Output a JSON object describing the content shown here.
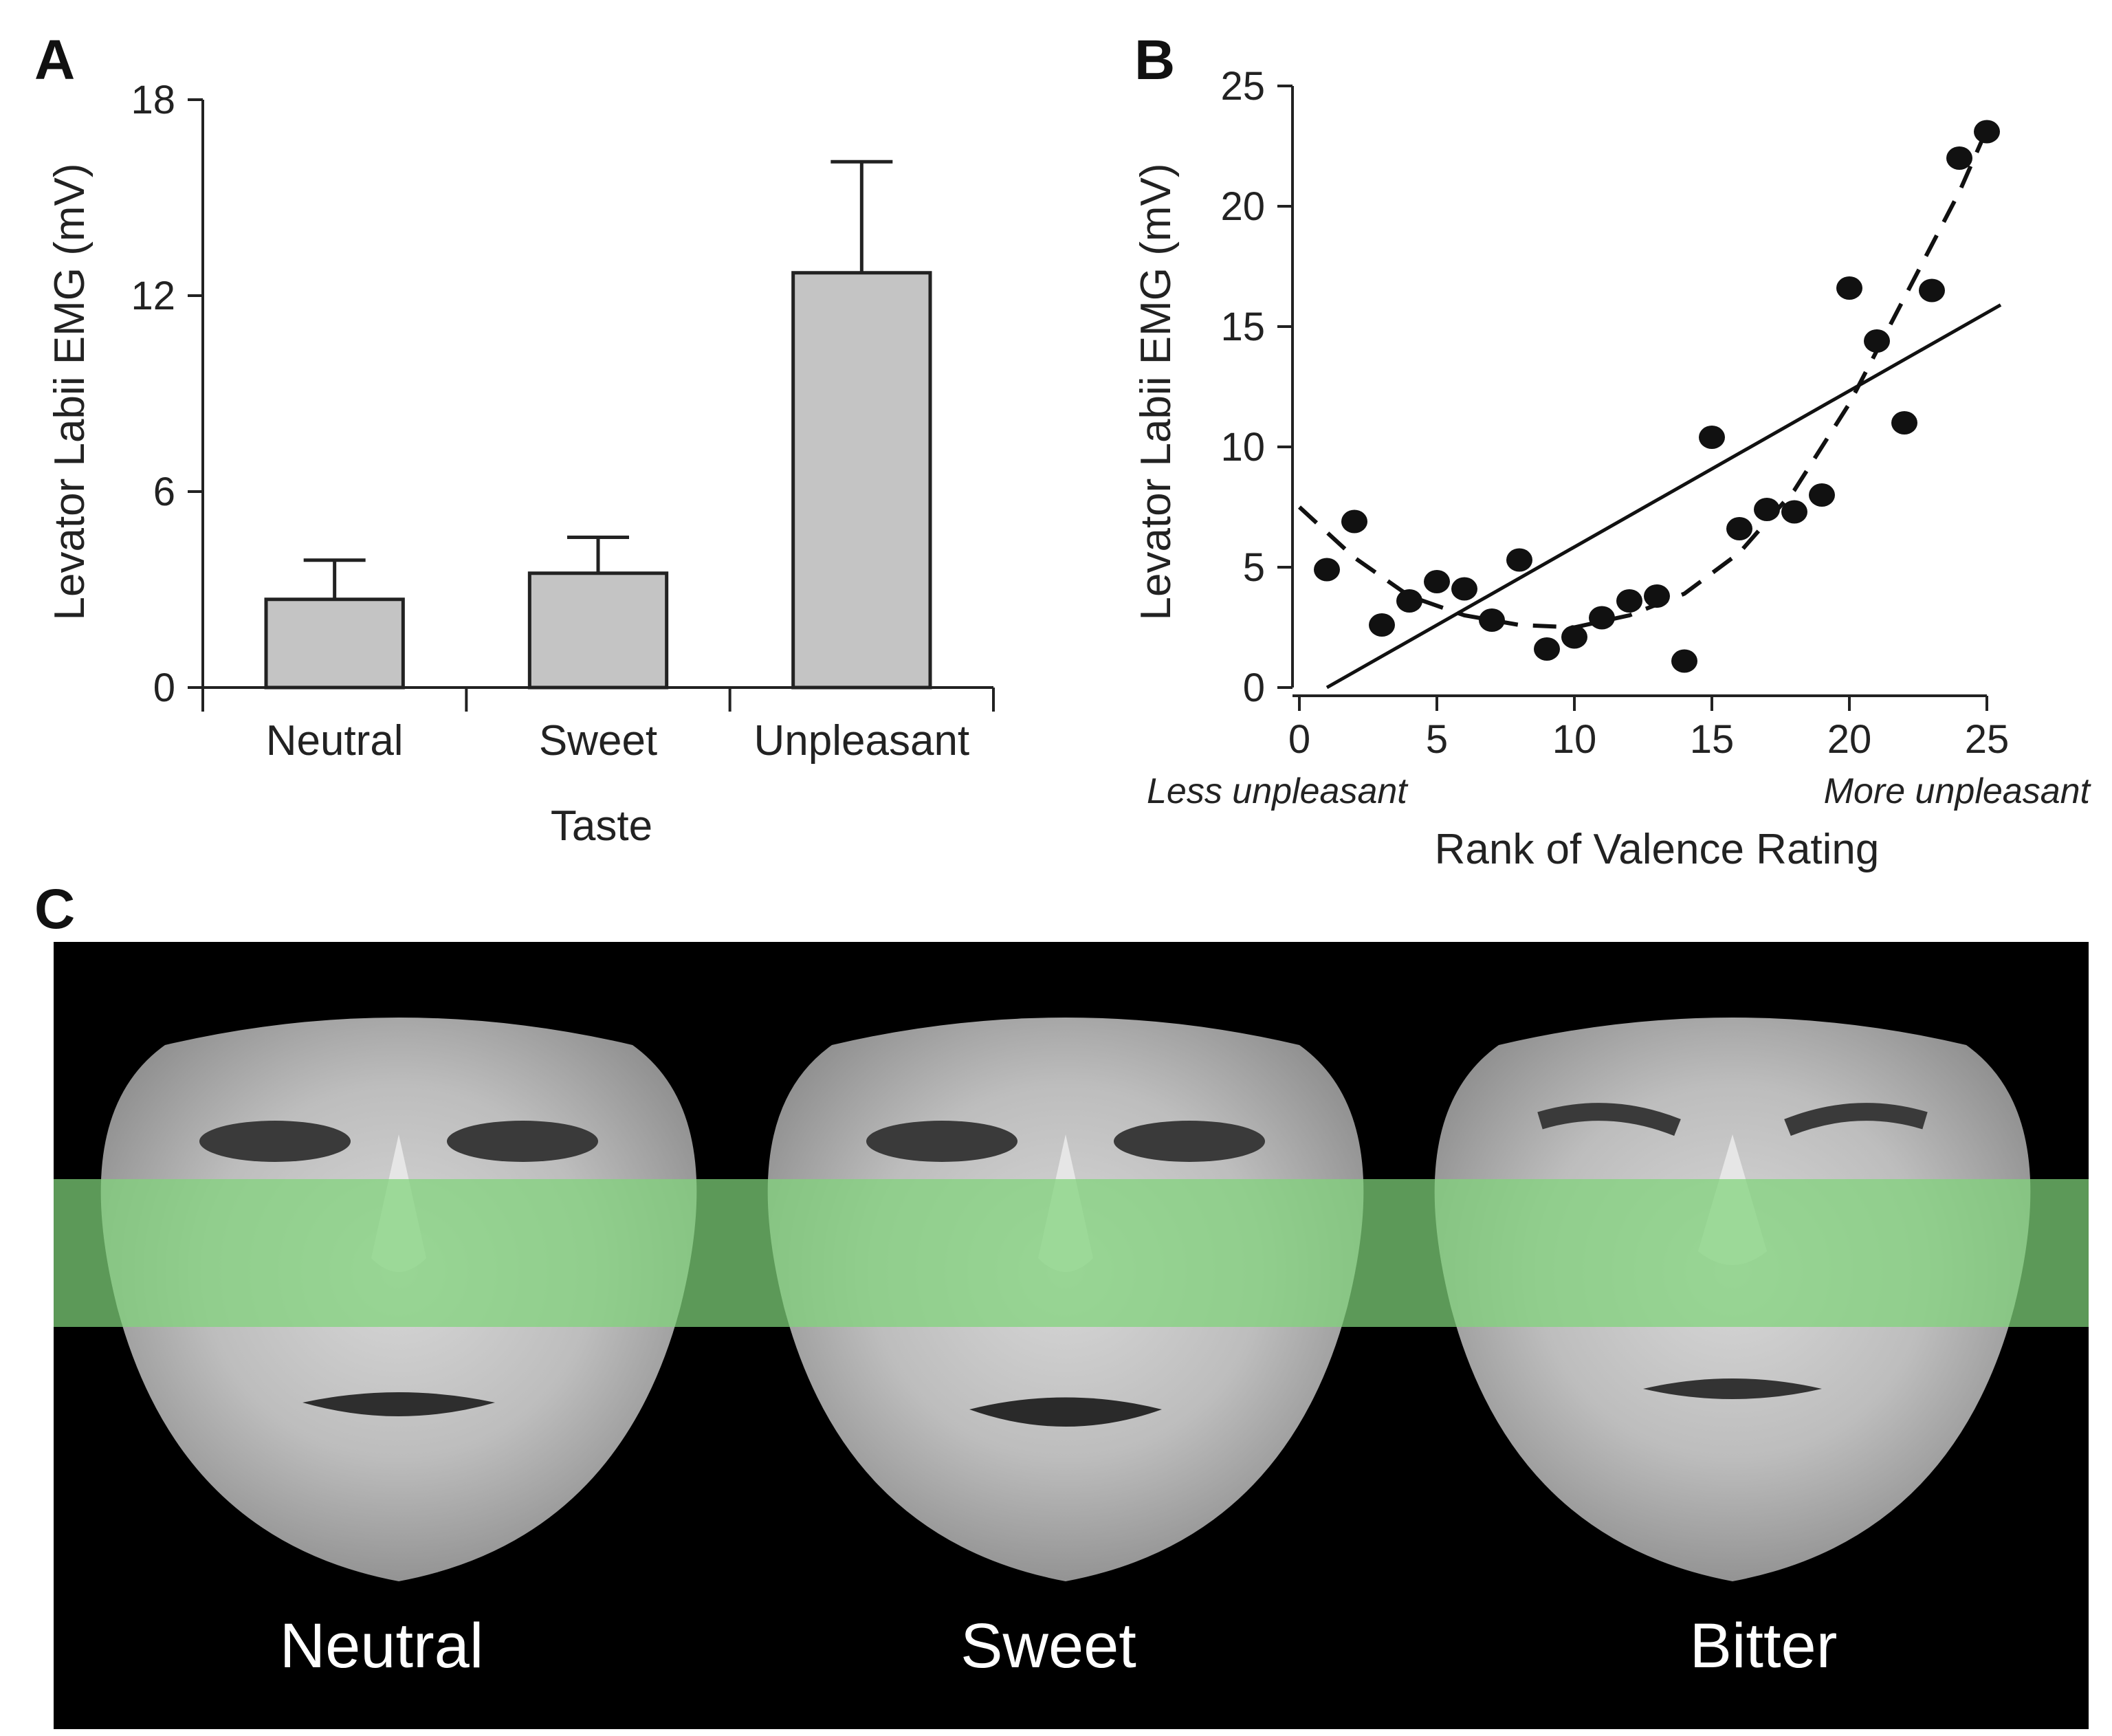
{
  "panels": {
    "a_letter": "A",
    "b_letter": "B",
    "c_letter": "C"
  },
  "chart_data": [
    {
      "type": "bar",
      "panel": "A",
      "categories": [
        "Neutral",
        "Sweet",
        "Unpleasant"
      ],
      "values": [
        2.7,
        3.5,
        12.7
      ],
      "errors": [
        1.2,
        1.1,
        3.4
      ],
      "xlabel": "Taste",
      "ylabel": "Levator Labii EMG (mV)",
      "ylim": [
        0,
        18
      ],
      "yticks": [
        "0",
        "6",
        "12",
        "18"
      ],
      "bar_color": "#c4c4c4",
      "grid": false
    },
    {
      "type": "scatter",
      "panel": "B",
      "xlabel": "Rank of Valence Rating",
      "ylabel": "Levator Labii EMG (mV)",
      "xlim": [
        0,
        25
      ],
      "ylim": [
        0,
        25
      ],
      "xticks": [
        "0",
        "5",
        "10",
        "15",
        "20",
        "25"
      ],
      "yticks": [
        "0",
        "5",
        "10",
        "15",
        "20",
        "25"
      ],
      "annotations": {
        "left": "Less unpleasant",
        "right": "More unpleasant"
      },
      "points": [
        [
          1,
          4.9
        ],
        [
          2,
          6.9
        ],
        [
          3,
          2.6
        ],
        [
          4,
          3.6
        ],
        [
          5,
          4.4
        ],
        [
          6,
          4.1
        ],
        [
          7,
          2.8
        ],
        [
          8,
          5.3
        ],
        [
          9,
          1.6
        ],
        [
          10,
          2.1
        ],
        [
          11,
          2.9
        ],
        [
          12,
          3.6
        ],
        [
          13,
          3.8
        ],
        [
          14,
          1.1
        ],
        [
          15,
          10.4
        ],
        [
          16,
          6.6
        ],
        [
          17,
          7.4
        ],
        [
          18,
          7.3
        ],
        [
          19,
          8.0
        ],
        [
          20,
          16.6
        ],
        [
          21,
          14.4
        ],
        [
          22,
          11.0
        ],
        [
          23,
          16.5
        ],
        [
          24,
          22.0
        ],
        [
          25,
          23.1
        ]
      ],
      "linear_fit": [
        [
          1,
          0
        ],
        [
          25.5,
          15.9
        ]
      ],
      "curve_fit": [
        [
          0,
          7.5
        ],
        [
          2,
          5.4
        ],
        [
          4,
          3.8
        ],
        [
          6,
          3.0
        ],
        [
          8,
          2.6
        ],
        [
          10,
          2.5
        ],
        [
          12,
          3.0
        ],
        [
          14,
          3.9
        ],
        [
          16,
          5.6
        ],
        [
          18,
          8.2
        ],
        [
          20,
          11.8
        ],
        [
          22,
          16.2
        ],
        [
          24,
          20.6
        ],
        [
          25,
          23.2
        ]
      ],
      "grid": false
    }
  ],
  "faces": {
    "labels": [
      "Neutral",
      "Sweet",
      "Bitter"
    ],
    "band_color": "#7fd47a",
    "background": "#000000"
  }
}
